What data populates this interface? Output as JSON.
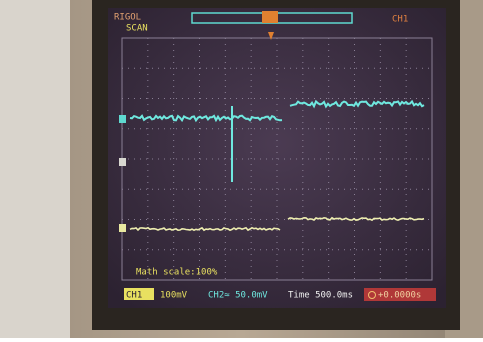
{
  "header": {
    "brand": "RIGOL",
    "mode": "SCAN",
    "trigger": "CH1"
  },
  "footer": {
    "math_scale": "Math scale:100%",
    "ch1_label": "CH1",
    "ch1": "100mV",
    "ch2": "CH2≈ 50.0mV",
    "time": "Time 500.0ms",
    "offset": "+0.0000s"
  }
}
